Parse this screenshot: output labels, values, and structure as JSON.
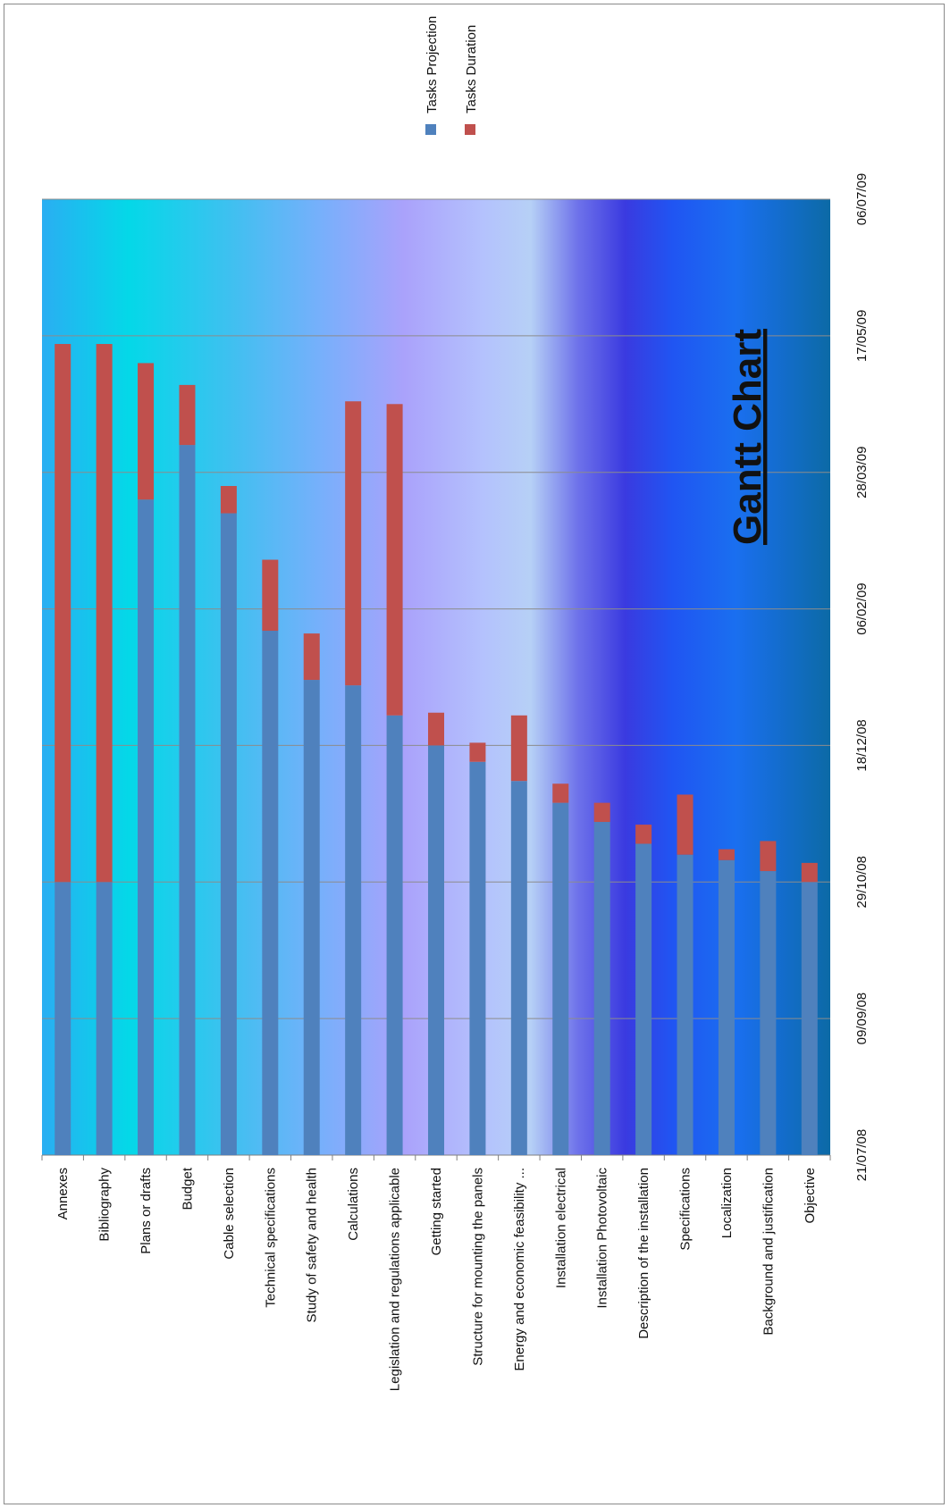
{
  "chart_data": {
    "type": "bar",
    "orientation": "stacked-horizontal (rotated page)",
    "title": "Gantt Chart",
    "categories": [
      "Annexes",
      "Bibliography",
      "Plans or drafts",
      "Budget",
      "Cable selection",
      "Technical specifications",
      "Study of safety and health",
      "Calculations",
      "Legislation and regulations applicable",
      "Getting started",
      "Structure for mounting the panels",
      "Energy and economic feasibility ...",
      "Installation electrical",
      "Installation Photovoltaic",
      "Description of the installation",
      "Specifications",
      "Localization",
      "Background and justification",
      "Objective"
    ],
    "date_ticks": [
      "21/07/08",
      "09/09/08",
      "29/10/08",
      "18/12/08",
      "06/02/09",
      "28/03/09",
      "17/05/09",
      "06/07/09"
    ],
    "date_range": [
      "21/07/08",
      "06/07/09"
    ],
    "series": [
      {
        "name": "Tasks Projection",
        "color": "#4f81bd",
        "start_dates": [
          "29/10/08",
          "29/10/08",
          "18/03/09",
          "07/04/09",
          "13/03/09",
          "29/01/09",
          "11/01/09",
          "09/01/09",
          "29/12/08",
          "18/12/08",
          "12/12/08",
          "05/12/08",
          "27/11/08",
          "20/11/08",
          "12/11/08",
          "08/11/08",
          "06/11/08",
          "02/11/08",
          "29/10/08"
        ]
      },
      {
        "name": "Tasks Duration",
        "color": "#c0504d",
        "durations_days": [
          197,
          197,
          50,
          22,
          10,
          26,
          17,
          104,
          114,
          12,
          7,
          24,
          7,
          7,
          7,
          22,
          4,
          11,
          7
        ]
      }
    ],
    "legend": {
      "position": "top",
      "entries": [
        "Tasks Projection",
        "Tasks Duration"
      ]
    },
    "grid": true
  }
}
